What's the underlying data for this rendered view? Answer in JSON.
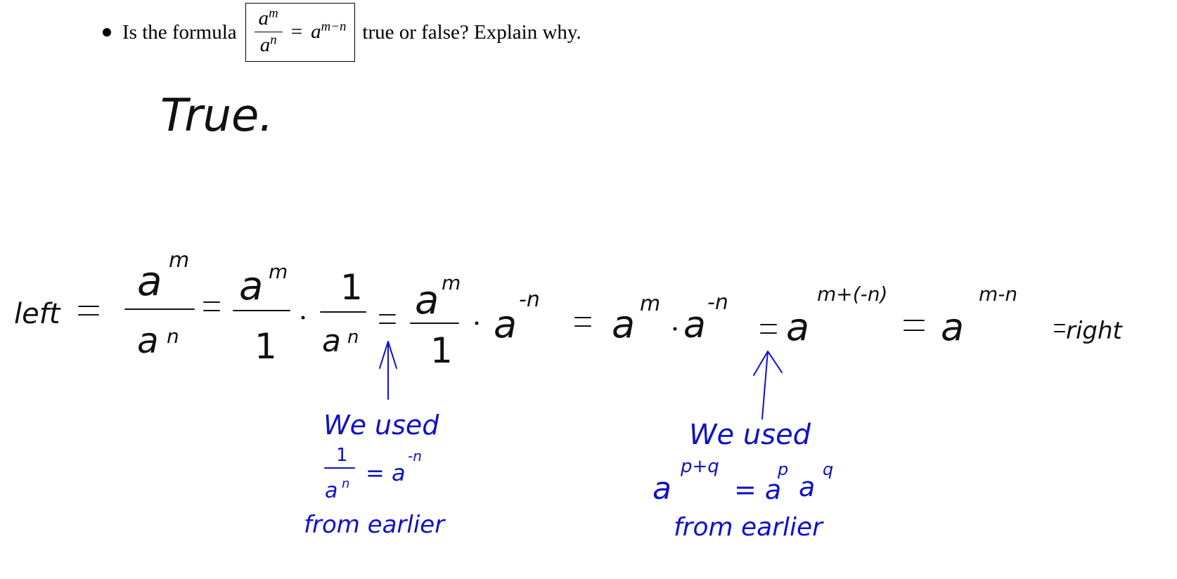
{
  "question": {
    "prefix": "Is the formula",
    "formula": {
      "num_base": "a",
      "num_exp": "m",
      "den_base": "a",
      "den_exp": "n",
      "equals": "=",
      "rhs_base": "a",
      "rhs_exp": "m−n"
    },
    "suffix": "true or false? Explain why."
  },
  "answer": "True.",
  "derivation": {
    "left_label": "left",
    "right_label": "right",
    "step_frac1": {
      "num": "a",
      "num_exp": "m",
      "den": "a",
      "den_exp": "n"
    },
    "step_frac2": {
      "num": "a",
      "num_exp": "m",
      "den": "1"
    },
    "step_frac3": {
      "num": "1",
      "den": "a",
      "den_exp": "n"
    },
    "step_frac4": {
      "num": "a",
      "num_exp": "m",
      "den": "1"
    },
    "neg_n": "-n",
    "exp_sum": "m+(-n)",
    "exp_diff": "m-n"
  },
  "note1": {
    "line1": "We used",
    "frac_num": "1",
    "frac_den": "a",
    "frac_den_exp": "n",
    "rhs": "= a",
    "rhs_exp": "-n",
    "line3": "from earlier"
  },
  "note2": {
    "line1": "We used",
    "lhs": "a",
    "lhs_exp": "p+q",
    "rhs": "= a",
    "rhs_exp1": "p",
    "rhs_base2": "a",
    "rhs_exp2": "q",
    "line3": "from earlier"
  }
}
